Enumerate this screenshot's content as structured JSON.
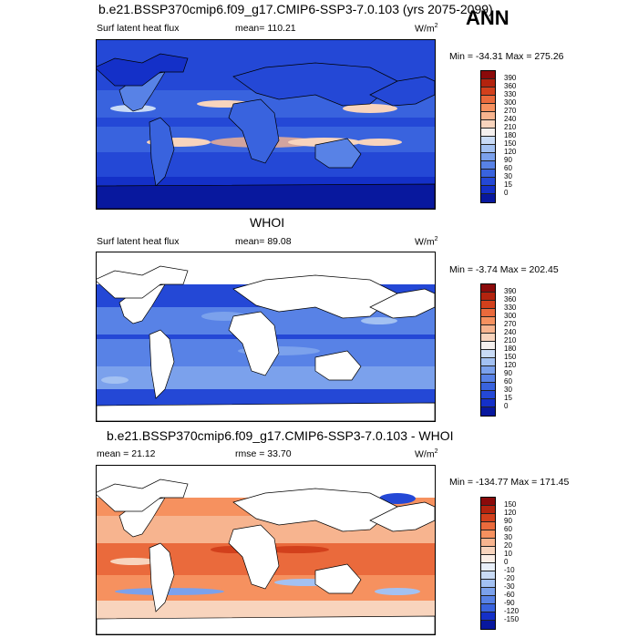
{
  "header": {
    "top_title": "b.e21.BSSP370cmip6.f09_g17.CMIP6-SSP3-7.0.103 (yrs 2075-2099)",
    "season": "ANN"
  },
  "panels": [
    {
      "variable": "Surf latent heat flux",
      "stat_text": "mean= 110.21",
      "units": "W/m",
      "units_exp": "2",
      "minmax": "Min = -34.31 Max = 275.26",
      "levels": [
        "390",
        "360",
        "330",
        "300",
        "270",
        "240",
        "210",
        "180",
        "150",
        "120",
        "90",
        "60",
        "30",
        "15",
        "0"
      ],
      "colors": [
        "#8b0a0a",
        "#b3230e",
        "#d2401c",
        "#ea6a3c",
        "#f6915f",
        "#f7b48f",
        "#f8d4bd",
        "#f5f0ee",
        "#c9dbf6",
        "#a3c1f2",
        "#7ba1ec",
        "#5882e6",
        "#3963de",
        "#2448d6",
        "#1430c8",
        "#08189e"
      ]
    },
    {
      "subtitle": "WHOI",
      "variable": "Surf latent heat flux",
      "stat_text": "mean=  89.08",
      "units": "W/m",
      "units_exp": "2",
      "minmax": "Min =  -3.74 Max = 202.45",
      "levels": [
        "390",
        "360",
        "330",
        "300",
        "270",
        "240",
        "210",
        "180",
        "150",
        "120",
        "90",
        "60",
        "30",
        "15",
        "0"
      ],
      "colors": [
        "#8b0a0a",
        "#b3230e",
        "#d2401c",
        "#ea6a3c",
        "#f6915f",
        "#f7b48f",
        "#f8d4bd",
        "#f5f0ee",
        "#c9dbf6",
        "#a3c1f2",
        "#7ba1ec",
        "#5882e6",
        "#3963de",
        "#2448d6",
        "#1430c8",
        "#08189e"
      ]
    },
    {
      "subtitle": "b.e21.BSSP370cmip6.f09_g17.CMIP6-SSP3-7.0.103 - WHOI",
      "stat_text": "mean =  21.12",
      "rmse_text": "rmse =  33.70",
      "units": "W/m",
      "units_exp": "2",
      "minmax": "Min = -134.77 Max = 171.45",
      "levels": [
        "150",
        "120",
        "90",
        "60",
        "30",
        "20",
        "10",
        "0",
        "-10",
        "-20",
        "-30",
        "-60",
        "-90",
        "-120",
        "-150"
      ],
      "colors": [
        "#8b0a0a",
        "#b3230e",
        "#d2401c",
        "#ea6a3c",
        "#f6915f",
        "#f7b48f",
        "#f8d4bd",
        "#fbeee6",
        "#e8eff9",
        "#c9dbf6",
        "#a3c1f2",
        "#7ba1ec",
        "#5882e6",
        "#3963de",
        "#1430c8",
        "#08189e"
      ]
    }
  ]
}
